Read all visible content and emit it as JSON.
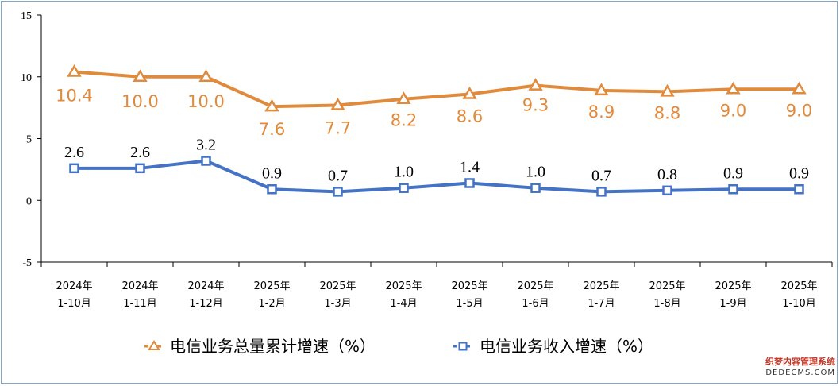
{
  "chart_data": {
    "type": "line",
    "categories": [
      [
        "2024年",
        "1-10月"
      ],
      [
        "2024年",
        "1-11月"
      ],
      [
        "2024年",
        "1-12月"
      ],
      [
        "2025年",
        "1-2月"
      ],
      [
        "2025年",
        "1-3月"
      ],
      [
        "2025年",
        "1-4月"
      ],
      [
        "2025年",
        "1-5月"
      ],
      [
        "2025年",
        "1-6月"
      ],
      [
        "2025年",
        "1-7月"
      ],
      [
        "2025年",
        "1-8月"
      ],
      [
        "2025年",
        "1-9月"
      ],
      [
        "2025年",
        "1-10月"
      ]
    ],
    "ylim": [
      -5,
      15
    ],
    "yticks": [
      15,
      10,
      5,
      0,
      -5
    ],
    "series": [
      {
        "name": "电信业务总量累计增速（%）",
        "color": "#e08a3c",
        "marker": "triangle",
        "values": [
          10.4,
          10.0,
          10.0,
          7.6,
          7.7,
          8.2,
          8.6,
          9.3,
          8.9,
          8.8,
          9.0,
          9.0
        ],
        "labels": [
          "10.4",
          "10.0",
          "10.0",
          "7.6",
          "7.7",
          "8.2",
          "8.6",
          "9.3",
          "8.9",
          "8.8",
          "9.0",
          "9.0"
        ]
      },
      {
        "name": "电信业务收入增速（%）",
        "color": "#4472c4",
        "marker": "square",
        "values": [
          2.6,
          2.6,
          3.2,
          0.9,
          0.7,
          1.0,
          1.4,
          1.0,
          0.7,
          0.8,
          0.9,
          0.9
        ],
        "labels": [
          "2.6",
          "2.6",
          "3.2",
          "0.9",
          "0.7",
          "1.0",
          "1.4",
          "1.0",
          "0.7",
          "0.8",
          "0.9",
          "0.9"
        ]
      }
    ],
    "legend": "bottom",
    "grid": false
  },
  "watermark": {
    "line1": "织梦内容管理系统",
    "line2": "DEDECMS.COM"
  }
}
